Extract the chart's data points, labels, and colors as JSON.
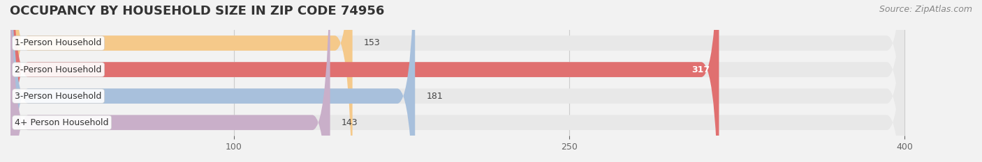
{
  "title": "OCCUPANCY BY HOUSEHOLD SIZE IN ZIP CODE 74956",
  "source": "Source: ZipAtlas.com",
  "categories": [
    "1-Person Household",
    "2-Person Household",
    "3-Person Household",
    "4+ Person Household"
  ],
  "values": [
    153,
    317,
    181,
    143
  ],
  "bar_colors": [
    "#f5c98a",
    "#e07070",
    "#a8c0dc",
    "#c9afc9"
  ],
  "label_colors": [
    "#555555",
    "#ffffff",
    "#555555",
    "#555555"
  ],
  "xlim": [
    0,
    430
  ],
  "xticks": [
    100,
    250,
    400
  ],
  "bg_color": "#f2f2f2",
  "bar_bg_color": "#e8e8e8",
  "title_fontsize": 13,
  "source_fontsize": 9,
  "label_fontsize": 9,
  "value_fontsize": 9,
  "bar_height": 0.55,
  "figsize": [
    14.06,
    2.33
  ]
}
